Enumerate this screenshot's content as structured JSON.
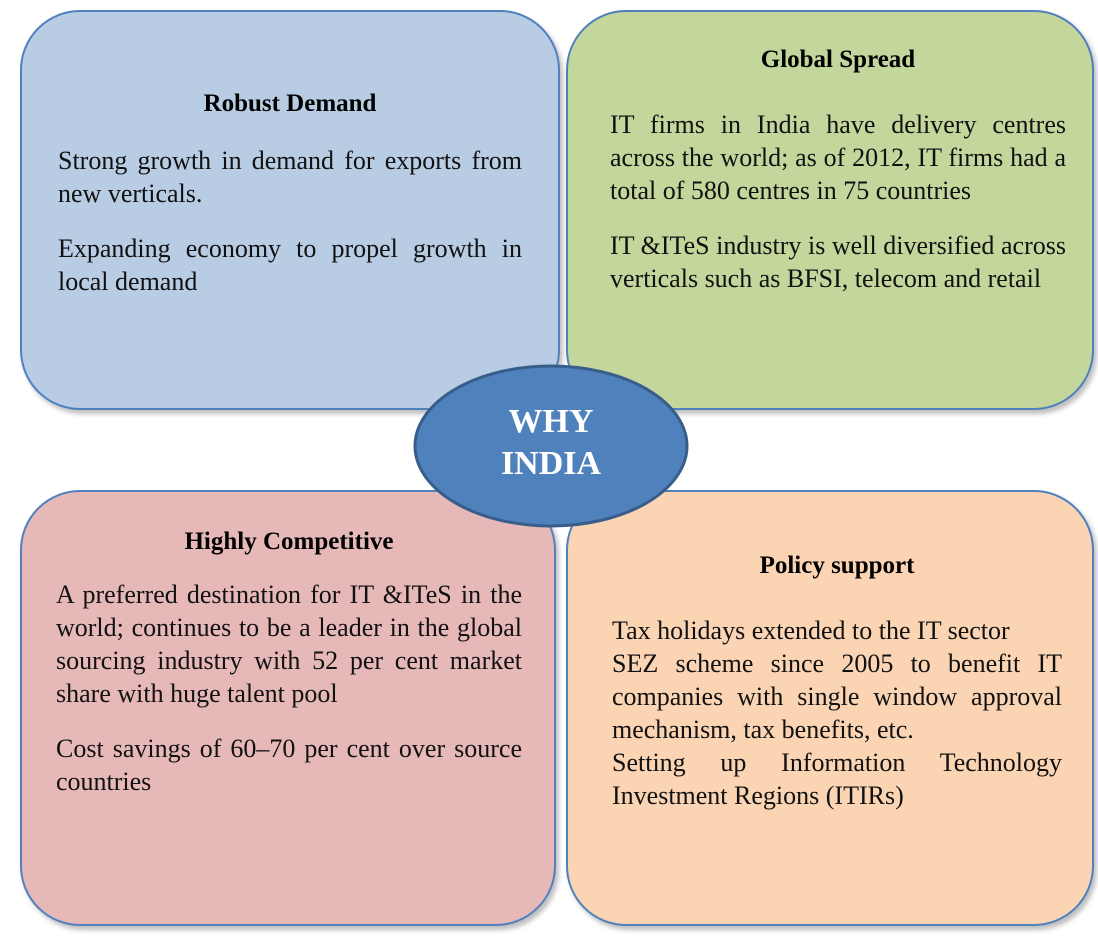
{
  "center": {
    "label": "WHY INDIA"
  },
  "boxes": [
    {
      "title": "Robust Demand",
      "paragraphs": [
        "Strong growth in demand for exports from new verticals.",
        "Expanding economy to propel growth in local demand"
      ]
    },
    {
      "title": "Global Spread",
      "paragraphs": [
        "IT firms in India have delivery centres across the world; as of 2012, IT firms had a total of 580 centres in 75 countries",
        "IT &ITeS industry is well diversified across verticals such as BFSI, telecom and retail"
      ]
    },
    {
      "title": "Highly Competitive",
      "paragraphs": [
        "A preferred destination for IT &ITeS in the world; continues to be a leader in the global sourcing industry with 52 per cent market share with huge talent pool",
        "Cost savings of 60–70 per cent over source countries"
      ]
    },
    {
      "title": "Policy support",
      "paragraphs": [
        "Tax holidays extended to the IT sector",
        "SEZ scheme since 2005 to benefit IT companies with single window approval mechanism, tax benefits, etc.",
        "Setting up Information Technology Investment Regions (ITIRs)"
      ]
    }
  ]
}
